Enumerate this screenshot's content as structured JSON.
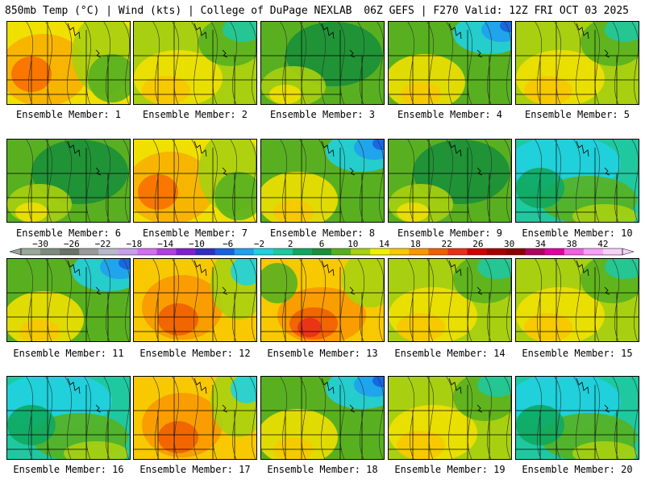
{
  "header": {
    "left": "850mb Temp (°C) | Wind (kts) | College of DuPage NEXLAB",
    "right": "06Z GEFS | F270 Valid: 12Z FRI OCT 03 2025"
  },
  "colorbar": {
    "ticks": [
      "−30",
      "−26",
      "−22",
      "−18",
      "−14",
      "−10",
      "−6",
      "−2",
      "2",
      "6",
      "10",
      "14",
      "18",
      "22",
      "26",
      "30",
      "34",
      "38",
      "42"
    ],
    "colors": [
      "#9aa89a",
      "#7d8a7d",
      "#6a726a",
      "#9a9a9a",
      "#b8b8c8",
      "#c8a0e8",
      "#d070f0",
      "#b040e0",
      "#8020d0",
      "#3030c0",
      "#1860e0",
      "#20a0f0",
      "#20d0e0",
      "#20c8a0",
      "#10a860",
      "#1a9038",
      "#58b020",
      "#a8d010",
      "#f0f000",
      "#f8c800",
      "#f89800",
      "#f06000",
      "#e83018",
      "#d00000",
      "#a80000",
      "#8a0000",
      "#b00060",
      "#e000a0",
      "#f060e0",
      "#f8a0f8",
      "#f8d0f8"
    ]
  },
  "members": [
    {
      "label": "Ensemble Member: 1",
      "scheme": "warm-west"
    },
    {
      "label": "Ensemble Member: 2",
      "scheme": "mid"
    },
    {
      "label": "Ensemble Member: 3",
      "scheme": "green"
    },
    {
      "label": "Ensemble Member: 4",
      "scheme": "blue-ne"
    },
    {
      "label": "Ensemble Member: 5",
      "scheme": "mid"
    },
    {
      "label": "Ensemble Member: 6",
      "scheme": "green"
    },
    {
      "label": "Ensemble Member: 7",
      "scheme": "warm-west"
    },
    {
      "label": "Ensemble Member: 8",
      "scheme": "blue-ne"
    },
    {
      "label": "Ensemble Member: 9",
      "scheme": "green"
    },
    {
      "label": "Ensemble Member: 10",
      "scheme": "cool"
    },
    {
      "label": "Ensemble Member: 11",
      "scheme": "blue-ne"
    },
    {
      "label": "Ensemble Member: 12",
      "scheme": "hot-west"
    },
    {
      "label": "Ensemble Member: 13",
      "scheme": "hot-center"
    },
    {
      "label": "Ensemble Member: 14",
      "scheme": "mid"
    },
    {
      "label": "Ensemble Member: 15",
      "scheme": "mid"
    },
    {
      "label": "Ensemble Member: 16",
      "scheme": "cool"
    },
    {
      "label": "Ensemble Member: 17",
      "scheme": "hot-west"
    },
    {
      "label": "Ensemble Member: 18",
      "scheme": "blue-ne"
    },
    {
      "label": "Ensemble Member: 19",
      "scheme": "mid"
    },
    {
      "label": "Ensemble Member: 20",
      "scheme": "cool"
    }
  ]
}
